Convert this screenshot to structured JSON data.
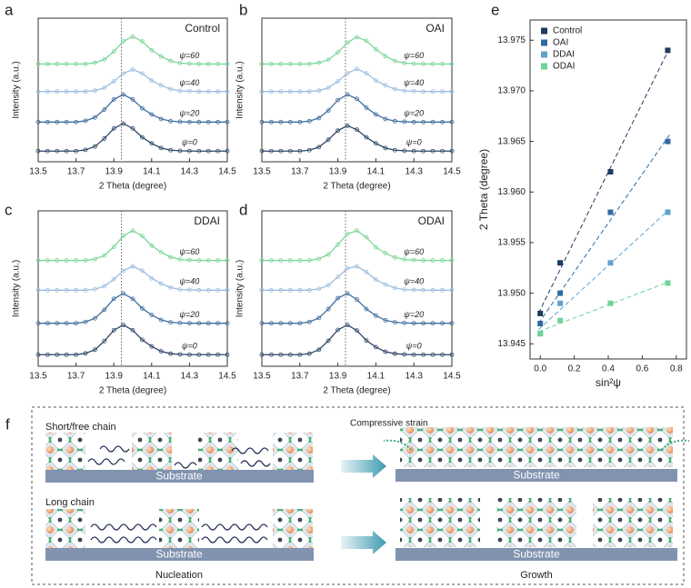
{
  "chart_data": [
    {
      "type": "line",
      "panel": "a",
      "title": "Control",
      "x_label": "2 Theta (degree)",
      "y_label": "Intensity (a.u.)",
      "vline": 13.94,
      "x": [
        13.5,
        13.55,
        13.6,
        13.65,
        13.7,
        13.75,
        13.8,
        13.85,
        13.9,
        13.95,
        14,
        14.05,
        14.1,
        14.15,
        14.2,
        14.25,
        14.3,
        14.35,
        14.4,
        14.45,
        14.5
      ],
      "xlim": [
        13.5,
        14.5
      ],
      "xticks": [
        13.5,
        13.7,
        13.9,
        14.1,
        14.3,
        14.5
      ],
      "ylim": [
        -0.3,
        4.4
      ],
      "series": [
        {
          "name": "ψ=0",
          "color": "#2c4566",
          "values": [
            0.05,
            0.05,
            0.05,
            0.05,
            0.05,
            0.09,
            0.2,
            0.46,
            0.79,
            0.95,
            0.79,
            0.5,
            0.3,
            0.15,
            0.08,
            0.06,
            0.05,
            0.05,
            0.05,
            0.05,
            0.05
          ]
        },
        {
          "name": "ψ=20",
          "color": "#3f6d9e",
          "values": [
            1,
            1,
            1,
            1,
            1,
            1.04,
            1.15,
            1.41,
            1.74,
            1.9,
            1.74,
            1.45,
            1.25,
            1.1,
            1.03,
            1.01,
            1,
            1,
            1,
            1,
            1
          ]
        },
        {
          "name": "ψ=40",
          "color": "#9dbde0",
          "values": [
            2,
            2,
            2,
            2,
            2,
            2,
            2.03,
            2.12,
            2.33,
            2.59,
            2.72,
            2.59,
            2.36,
            2.2,
            2.08,
            2.02,
            2.01,
            2,
            2,
            2,
            2
          ]
        },
        {
          "name": "ψ=60",
          "color": "#7dd69a",
          "values": [
            2.9,
            2.9,
            2.9,
            2.9,
            2.9,
            2.9,
            2.94,
            3.05,
            3.31,
            3.64,
            3.8,
            3.64,
            3.35,
            3.15,
            3.0,
            2.93,
            2.91,
            2.9,
            2.9,
            2.9,
            2.9
          ]
        }
      ]
    },
    {
      "type": "line",
      "panel": "b",
      "title": "OAI",
      "x_label": "2 Theta (degree)",
      "y_label": "Intensity (a.u.)",
      "vline": 13.94,
      "x": [
        13.5,
        13.55,
        13.6,
        13.65,
        13.7,
        13.75,
        13.8,
        13.85,
        13.9,
        13.95,
        14,
        14.05,
        14.1,
        14.15,
        14.2,
        14.25,
        14.3,
        14.35,
        14.4,
        14.45,
        14.5
      ],
      "xlim": [
        13.5,
        14.5
      ],
      "xticks": [
        13.5,
        13.7,
        13.9,
        14.1,
        14.3,
        14.5
      ],
      "ylim": [
        -0.3,
        4.4
      ],
      "series": [
        {
          "name": "ψ=0",
          "color": "#2c4566",
          "values": [
            0.05,
            0.05,
            0.05,
            0.05,
            0.05,
            0.08,
            0.18,
            0.42,
            0.72,
            0.88,
            0.75,
            0.5,
            0.3,
            0.15,
            0.08,
            0.06,
            0.05,
            0.05,
            0.05,
            0.05,
            0.05
          ]
        },
        {
          "name": "ψ=20",
          "color": "#3f6d9e",
          "values": [
            1,
            1,
            1,
            1,
            1,
            1.03,
            1.13,
            1.38,
            1.72,
            1.9,
            1.76,
            1.47,
            1.25,
            1.1,
            1.03,
            1.01,
            1,
            1,
            1,
            1,
            1
          ]
        },
        {
          "name": "ψ=40",
          "color": "#9dbde0",
          "values": [
            2,
            2,
            2,
            2,
            2,
            2,
            2.03,
            2.12,
            2.33,
            2.6,
            2.74,
            2.6,
            2.36,
            2.2,
            2.08,
            2.02,
            2.01,
            2,
            2,
            2,
            2
          ]
        },
        {
          "name": "ψ=60",
          "color": "#7dd69a",
          "values": [
            2.9,
            2.9,
            2.9,
            2.9,
            2.9,
            2.9,
            2.94,
            3.04,
            3.28,
            3.6,
            3.78,
            3.66,
            3.38,
            3.16,
            3.0,
            2.93,
            2.91,
            2.9,
            2.9,
            2.9,
            2.9
          ]
        }
      ]
    },
    {
      "type": "line",
      "panel": "c",
      "title": "DDAI",
      "x_label": "2 Theta (degree)",
      "y_label": "Intensity (a.u.)",
      "vline": 13.94,
      "x": [
        13.5,
        13.55,
        13.6,
        13.65,
        13.7,
        13.75,
        13.8,
        13.85,
        13.9,
        13.95,
        14,
        14.05,
        14.1,
        14.15,
        14.2,
        14.25,
        14.3,
        14.35,
        14.4,
        14.45,
        14.5
      ],
      "xlim": [
        13.5,
        14.5
      ],
      "xticks": [
        13.5,
        13.7,
        13.9,
        14.1,
        14.3,
        14.5
      ],
      "ylim": [
        -0.3,
        4.4
      ],
      "series": [
        {
          "name": "ψ=0",
          "color": "#2c4566",
          "values": [
            0.05,
            0.05,
            0.05,
            0.05,
            0.05,
            0.09,
            0.2,
            0.46,
            0.79,
            0.95,
            0.79,
            0.5,
            0.3,
            0.15,
            0.08,
            0.06,
            0.05,
            0.05,
            0.05,
            0.05,
            0.05
          ]
        },
        {
          "name": "ψ=20",
          "color": "#3f6d9e",
          "values": [
            1,
            1,
            1,
            1,
            1,
            1.04,
            1.15,
            1.41,
            1.74,
            1.9,
            1.74,
            1.45,
            1.25,
            1.1,
            1.03,
            1.01,
            1,
            1,
            1,
            1,
            1
          ]
        },
        {
          "name": "ψ=40",
          "color": "#9dbde0",
          "values": [
            2,
            2,
            2,
            2,
            2,
            2,
            2.03,
            2.12,
            2.33,
            2.59,
            2.72,
            2.59,
            2.36,
            2.2,
            2.08,
            2.02,
            2.01,
            2,
            2,
            2,
            2
          ]
        },
        {
          "name": "ψ=60",
          "color": "#7dd69a",
          "values": [
            2.9,
            2.9,
            2.9,
            2.9,
            2.9,
            2.9,
            2.94,
            3.05,
            3.31,
            3.64,
            3.8,
            3.64,
            3.35,
            3.15,
            3.0,
            2.93,
            2.91,
            2.9,
            2.9,
            2.9,
            2.9
          ]
        }
      ]
    },
    {
      "type": "line",
      "panel": "d",
      "title": "ODAI",
      "x_label": "2 Theta (degree)",
      "y_label": "Intensity (a.u.)",
      "vline": 13.94,
      "x": [
        13.5,
        13.55,
        13.6,
        13.65,
        13.7,
        13.75,
        13.8,
        13.85,
        13.9,
        13.95,
        14,
        14.05,
        14.1,
        14.15,
        14.2,
        14.25,
        14.3,
        14.35,
        14.4,
        14.45,
        14.5
      ],
      "xlim": [
        13.5,
        14.5
      ],
      "xticks": [
        13.5,
        13.7,
        13.9,
        14.1,
        14.3,
        14.5
      ],
      "ylim": [
        -0.3,
        4.4
      ],
      "series": [
        {
          "name": "ψ=0",
          "color": "#2c4566",
          "values": [
            0.05,
            0.05,
            0.05,
            0.05,
            0.05,
            0.08,
            0.2,
            0.47,
            0.8,
            0.95,
            0.78,
            0.48,
            0.28,
            0.14,
            0.08,
            0.06,
            0.05,
            0.05,
            0.05,
            0.05,
            0.05
          ]
        },
        {
          "name": "ψ=20",
          "color": "#3f6d9e",
          "values": [
            1,
            1,
            1,
            1,
            1,
            1.04,
            1.16,
            1.43,
            1.76,
            1.9,
            1.72,
            1.43,
            1.23,
            1.09,
            1.03,
            1.01,
            1,
            1,
            1,
            1,
            1
          ]
        },
        {
          "name": "ψ=40",
          "color": "#9dbde0",
          "values": [
            2,
            2,
            2,
            2,
            2,
            2,
            2.04,
            2.15,
            2.4,
            2.66,
            2.72,
            2.55,
            2.32,
            2.17,
            2.07,
            2.02,
            2.01,
            2,
            2,
            2,
            2
          ]
        },
        {
          "name": "ψ=60",
          "color": "#7dd69a",
          "values": [
            2.9,
            2.9,
            2.9,
            2.9,
            2.9,
            2.9,
            2.95,
            3.08,
            3.38,
            3.7,
            3.8,
            3.6,
            3.3,
            3.12,
            2.99,
            2.93,
            2.91,
            2.9,
            2.9,
            2.9,
            2.9
          ]
        }
      ]
    },
    {
      "type": "scatter",
      "panel": "e",
      "x_label": "sin²ψ",
      "y_label": "2 Theta (degree)",
      "x": [
        0,
        0.117,
        0.413,
        0.75
      ],
      "xlim": [
        -0.06,
        0.86
      ],
      "xticks": [
        {
          "value": 0,
          "label": "0.0"
        },
        0.2,
        0.4,
        0.6,
        0.8
      ],
      "ylim": [
        13.9435,
        13.977
      ],
      "yticks": [
        13.945,
        {
          "value": 13.95,
          "label": "13.950"
        },
        13.955,
        {
          "value": 13.96,
          "label": "13.960"
        },
        13.965,
        {
          "value": 13.97,
          "label": "13.970"
        },
        13.975
      ],
      "series": [
        {
          "name": "Control",
          "color": "#1f3a5f",
          "values": [
            13.948,
            13.953,
            13.962,
            13.974
          ]
        },
        {
          "name": "OAI",
          "color": "#2f6aa0",
          "values": [
            13.947,
            13.95,
            13.958,
            13.965
          ]
        },
        {
          "name": "DDAI",
          "color": "#5ea3cf",
          "values": [
            13.946,
            13.949,
            13.953,
            13.958
          ]
        },
        {
          "name": "ODAI",
          "color": "#6fd39a",
          "values": [
            13.946,
            13.9473,
            13.949,
            13.951
          ]
        }
      ]
    }
  ],
  "diagram": {
    "panel": "f",
    "annotation": "Compressive strain",
    "substrate": "Substrate",
    "rows": [
      "Short/free chain",
      "Long chain"
    ],
    "stages": [
      "Nucleation",
      "Growth"
    ]
  }
}
